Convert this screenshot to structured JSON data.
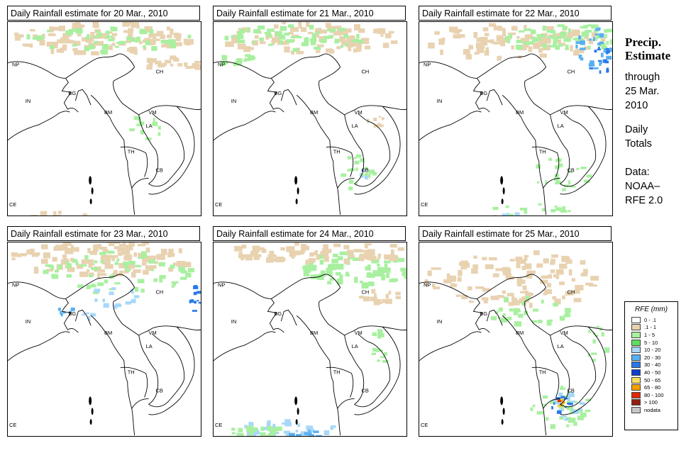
{
  "panels": [
    {
      "title": "Daily Rainfall estimate for  20 Mar., 2010",
      "level": 1
    },
    {
      "title": "Daily Rainfall estimate for  21 Mar., 2010",
      "level": 1
    },
    {
      "title": "Daily Rainfall estimate for  22 Mar., 2010",
      "level": 2
    },
    {
      "title": "Daily Rainfall estimate for  23 Mar., 2010",
      "level": 2
    },
    {
      "title": "Daily Rainfall estimate for  24 Mar., 2010",
      "level": 2
    },
    {
      "title": "Daily Rainfall estimate for  25 Mar., 2010",
      "level": 3
    }
  ],
  "map_labels": [
    "NP",
    "CH",
    "IN",
    "BG",
    "BM",
    "VM",
    "LA",
    "TH",
    "CB",
    "CE"
  ],
  "sidebar": {
    "title_line1": "Precip.",
    "title_line2": "Estimate",
    "through": "through",
    "date1": "25 Mar.",
    "date2": "2010",
    "daily1": "Daily",
    "daily2": "Totals",
    "data1": "Data:",
    "data2": "NOAA–",
    "data3": "RFE 2.0"
  },
  "legend": {
    "title": "RFE (mm)",
    "items": [
      {
        "label": "0 - .1",
        "color": "#ffffff"
      },
      {
        "label": ".1 - 1",
        "color": "#e8d2b0"
      },
      {
        "label": "1 - 5",
        "color": "#a8f0a0"
      },
      {
        "label": "5 - 10",
        "color": "#60dd60"
      },
      {
        "label": "10 - 20",
        "color": "#a8d8f8"
      },
      {
        "label": "20 - 30",
        "color": "#58b0f0"
      },
      {
        "label": "30 - 40",
        "color": "#2878e8"
      },
      {
        "label": "40 - 50",
        "color": "#1040c8"
      },
      {
        "label": "50 - 65",
        "color": "#f8e060"
      },
      {
        "label": "65 - 80",
        "color": "#f8a000"
      },
      {
        "label": "80 - 100",
        "color": "#e02800"
      },
      {
        "label": "> 100",
        "color": "#902010"
      },
      {
        "label": "nodata",
        "color": "#c8c8c8"
      }
    ]
  }
}
